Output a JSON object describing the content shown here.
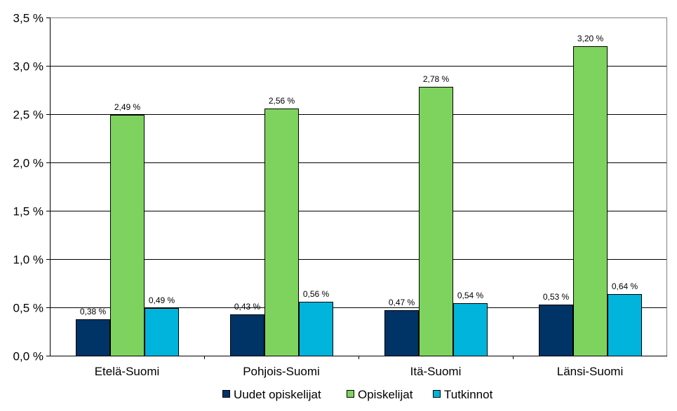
{
  "chart_data": {
    "type": "bar",
    "title": "",
    "xlabel": "",
    "ylabel": "",
    "categories": [
      "Etelä-Suomi",
      "Pohjois-Suomi",
      "Itä-Suomi",
      "Länsi-Suomi"
    ],
    "series": [
      {
        "name": "Uudet opiskelijat",
        "color": "#003366",
        "values": [
          0.38,
          0.43,
          0.47,
          0.53
        ],
        "labels": [
          "0,38 %",
          "0,43 %",
          "0,47 %",
          "0,53 %"
        ]
      },
      {
        "name": "Opiskelijat",
        "color": "#7ED35F",
        "values": [
          2.49,
          2.56,
          2.78,
          3.2
        ],
        "labels": [
          "2,49 %",
          "2,56 %",
          "2,78 %",
          "3,20 %"
        ]
      },
      {
        "name": "Tutkinnot",
        "color": "#00B4DB",
        "values": [
          0.49,
          0.56,
          0.54,
          0.64
        ],
        "labels": [
          "0,49 %",
          "0,56 %",
          "0,54 %",
          "0,64 %"
        ]
      }
    ],
    "ylim": [
      0,
      3.5
    ],
    "yticks": [
      0,
      0.5,
      1.0,
      1.5,
      2.0,
      2.5,
      3.0,
      3.5
    ],
    "ytick_labels": [
      "0,0 %",
      "0,5 %",
      "1,0 %",
      "1,5 %",
      "2,0 %",
      "2,5 %",
      "3,0 %",
      "3,5 %"
    ],
    "grid": true,
    "legend_position": "bottom"
  }
}
